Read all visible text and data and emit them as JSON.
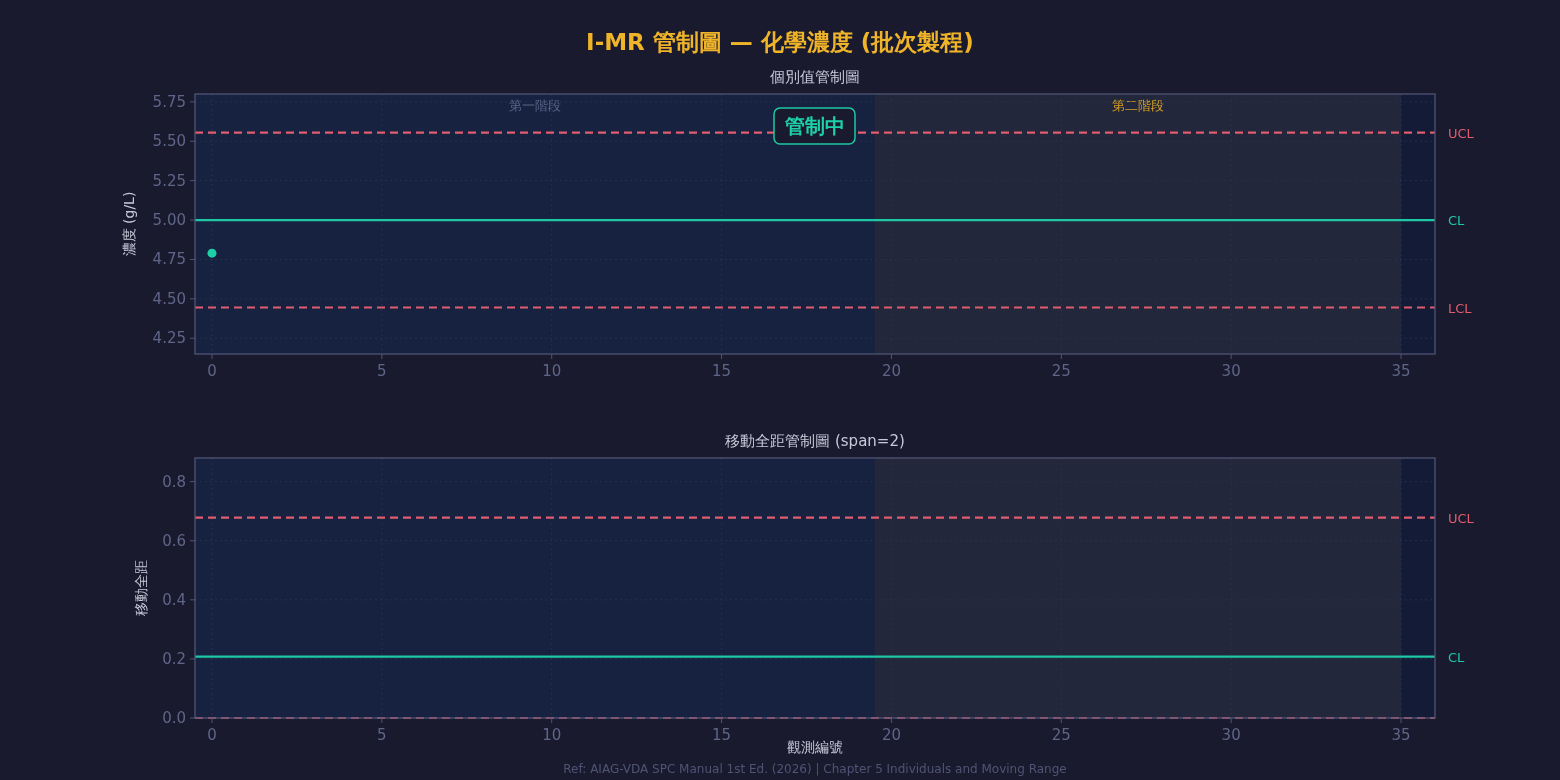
{
  "chart_data": [
    {
      "type": "scatter",
      "title": "I-MR 管制圖 — 化學濃度 (批次製程)",
      "subtitle": "個別值管制圖",
      "ylabel": "濃度 (g/L)",
      "series": [
        {
          "color": "#1ed0a8",
          "x": [
            0
          ],
          "values": [
            4.79
          ]
        }
      ],
      "xlim": [
        -0.5,
        36
      ],
      "xticks": [
        0,
        5,
        10,
        15,
        20,
        25,
        30,
        35
      ],
      "ylim": [
        4.15,
        5.8
      ],
      "yticks": [
        {
          "value": 4.25,
          "label": "4.25"
        },
        {
          "value": 4.5,
          "label": "4.50"
        },
        {
          "value": 4.75,
          "label": "4.75"
        },
        {
          "value": 5,
          "label": "5.00"
        },
        {
          "value": 5.25,
          "label": "5.25"
        },
        {
          "value": 5.5,
          "label": "5.50"
        },
        {
          "value": 5.75,
          "label": "5.75"
        }
      ],
      "grid": true,
      "marker": "circle",
      "bands": [
        {
          "axis": "x",
          "from": -0.5,
          "to": 19.5,
          "label": "第一階段",
          "color": "#172240"
        },
        {
          "axis": "x",
          "from": 19.5,
          "to": 35,
          "label": "第二階段",
          "color": "#23273b"
        }
      ],
      "ref_lines": [
        {
          "axis": "y",
          "value": 5.555,
          "label": "UCL",
          "color": "#e05c6e",
          "line_style": "dashed"
        },
        {
          "axis": "y",
          "value": 5.0,
          "label": "CL",
          "color": "#1ec8a5",
          "line_style": "solid"
        },
        {
          "axis": "y",
          "value": 4.445,
          "label": "LCL",
          "color": "#e05c6e",
          "line_style": "dashed"
        }
      ],
      "annotations": [
        "管制中"
      ]
    },
    {
      "type": "line",
      "title": "移動全距管制圖 (span=2)",
      "xlabel": "觀測編號",
      "ylabel": "移動全距",
      "xlim": [
        -0.5,
        36
      ],
      "xticks": [
        0,
        5,
        10,
        15,
        20,
        25,
        30,
        35
      ],
      "ylim": [
        0,
        0.88
      ],
      "yticks": [
        {
          "value": 0,
          "label": "0.0"
        },
        0.2,
        0.4,
        0.6,
        0.8
      ],
      "grid": true,
      "bands": [
        {
          "axis": "x",
          "from": -0.5,
          "to": 19.5,
          "label": null,
          "color": "#172240"
        },
        {
          "axis": "x",
          "from": 19.5,
          "to": 35,
          "label": null,
          "color": "#23273b"
        }
      ],
      "ref_lines": [
        {
          "axis": "y",
          "value": 0.678,
          "label": "UCL",
          "color": "#e05c6e",
          "line_style": "dashed"
        },
        {
          "axis": "y",
          "value": 0.208,
          "label": "CL",
          "color": "#1ec8a5",
          "line_style": "solid"
        },
        {
          "axis": "y",
          "value": 0,
          "label": null,
          "color": "#e05c6e",
          "line_style": "dashed"
        }
      ],
      "annotations": [
        "Ref: AIAG-VDA SPC Manual 1st Ed. (2026) | Chapter 5 Individuals and Moving Range"
      ]
    }
  ]
}
